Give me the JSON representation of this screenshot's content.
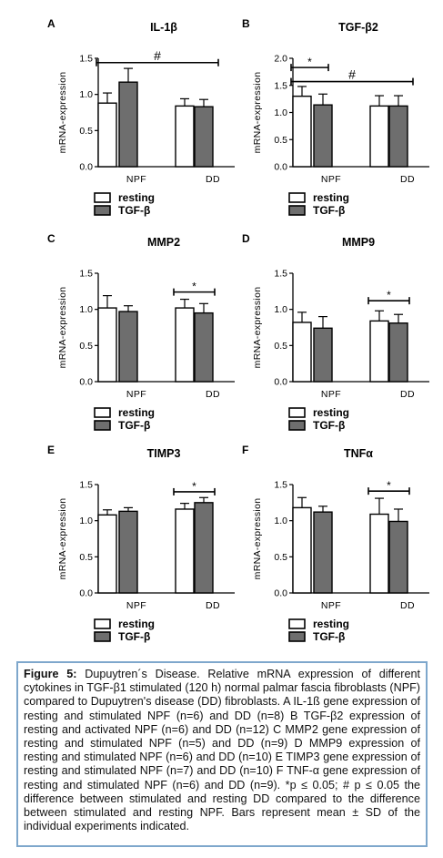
{
  "figure": {
    "caption_lead": "Figure 5:",
    "caption_body": "Dupuytren´s Disease. Relative mRNA expression of different cytokines in TGF-β1 stimulated (120 h) normal palmar fascia fibroblasts (NPF) compared to Dupuytren's disease (DD) fibroblasts. A IL-1ß gene expression of resting and stimulated NPF (n=6) and DD (n=8) B TGF-β2 expression of resting and activated NPF (n=6) and DD (n=12) C MMP2 gene expression of resting and stimulated NPF (n=5) and DD (n=9) D MMP9 expression of resting and stimulated NPF (n=6) and DD (n=10) E TIMP3 gene expression of resting and stimulated NPF (n=7) and DD (n=10) F TNF-α gene expression of resting and stimulated NPF (n=6) and DD (n=9). *p ≤ 0.05; # p ≤ 0.05 the difference between stimulated and resting DD compared to the difference between stimulated and resting NPF. Bars represent mean ± SD of the individual experiments indicated."
  },
  "colors": {
    "resting": "#ffffff",
    "stimulated": "#6e6e6e",
    "stroke": "#000000"
  },
  "chart_data": [
    {
      "panel_letter": "A",
      "type": "bar",
      "title": "IL-1β",
      "ylabel": "mRNA-expression",
      "categories": [
        "NPF",
        "DD"
      ],
      "ylim": [
        0,
        1.5
      ],
      "yticks": [
        "0.0",
        "0.5",
        "1.0",
        "1.5"
      ],
      "series": [
        {
          "name": "resting",
          "values": [
            0.88,
            0.84
          ],
          "errors": [
            0.14,
            0.1
          ]
        },
        {
          "name": "TGF-β",
          "values": [
            1.17,
            0.83
          ],
          "errors": [
            0.19,
            0.1
          ]
        }
      ],
      "annotations": [
        {
          "label": "#",
          "from": "NPF",
          "to": "DD",
          "level": 1.44
        }
      ]
    },
    {
      "panel_letter": "B",
      "type": "bar",
      "title": "TGF-β2",
      "ylabel": "mRNA-expression",
      "categories": [
        "NPF",
        "DD"
      ],
      "ylim": [
        0,
        2.0
      ],
      "yticks": [
        "0.0",
        "0.5",
        "1.0",
        "1.5",
        "2.0"
      ],
      "series": [
        {
          "name": "resting",
          "values": [
            1.3,
            1.12
          ],
          "errors": [
            0.18,
            0.19
          ]
        },
        {
          "name": "TGF-β",
          "values": [
            1.14,
            1.12
          ],
          "errors": [
            0.2,
            0.19
          ]
        }
      ],
      "annotations": [
        {
          "label": "*",
          "from": "NPF-resting",
          "to": "NPF-TGF",
          "level": 1.83
        },
        {
          "label": "#",
          "from": "NPF",
          "to": "DD",
          "level": 1.57
        }
      ]
    },
    {
      "panel_letter": "C",
      "type": "bar",
      "title": "MMP2",
      "ylabel": "mRNA-expression",
      "categories": [
        "NPF",
        "DD"
      ],
      "ylim": [
        0,
        1.5
      ],
      "yticks": [
        "0.0",
        "0.5",
        "1.0",
        "1.5"
      ],
      "series": [
        {
          "name": "resting",
          "values": [
            1.02,
            1.02
          ],
          "errors": [
            0.17,
            0.12
          ]
        },
        {
          "name": "TGF-β",
          "values": [
            0.97,
            0.95
          ],
          "errors": [
            0.08,
            0.13
          ]
        }
      ],
      "annotations": [
        {
          "label": "*",
          "from": "DD-resting",
          "to": "DD-TGF",
          "level": 1.24
        }
      ]
    },
    {
      "panel_letter": "D",
      "type": "bar",
      "title": "MMP9",
      "ylabel": "mRNA-expression",
      "categories": [
        "NPF",
        "DD"
      ],
      "ylim": [
        0,
        1.5
      ],
      "yticks": [
        "0.0",
        "0.5",
        "1.0",
        "1.5"
      ],
      "series": [
        {
          "name": "resting",
          "values": [
            0.82,
            0.84
          ],
          "errors": [
            0.14,
            0.14
          ]
        },
        {
          "name": "TGF-β",
          "values": [
            0.74,
            0.81
          ],
          "errors": [
            0.16,
            0.12
          ]
        }
      ],
      "annotations": [
        {
          "label": "*",
          "from": "DD-resting",
          "to": "DD-TGF",
          "level": 1.12
        }
      ]
    },
    {
      "panel_letter": "E",
      "type": "bar",
      "title": "TIMP3",
      "ylabel": "mRNA-expression",
      "categories": [
        "NPF",
        "DD"
      ],
      "ylim": [
        0,
        1.5
      ],
      "yticks": [
        "0.0",
        "0.5",
        "1.0",
        "1.5"
      ],
      "series": [
        {
          "name": "resting",
          "values": [
            1.08,
            1.16
          ],
          "errors": [
            0.07,
            0.08
          ]
        },
        {
          "name": "TGF-β",
          "values": [
            1.13,
            1.25
          ],
          "errors": [
            0.05,
            0.07
          ]
        }
      ],
      "annotations": [
        {
          "label": "*",
          "from": "DD-resting",
          "to": "DD-TGF",
          "level": 1.4
        }
      ]
    },
    {
      "panel_letter": "F",
      "type": "bar",
      "title": "TNFα",
      "ylabel": "mRNA-expression",
      "categories": [
        "NPF",
        "DD"
      ],
      "ylim": [
        0,
        1.5
      ],
      "yticks": [
        "0.0",
        "0.5",
        "1.0",
        "1.5"
      ],
      "series": [
        {
          "name": "resting",
          "values": [
            1.18,
            1.09
          ],
          "errors": [
            0.14,
            0.22
          ]
        },
        {
          "name": "TGF-β",
          "values": [
            1.12,
            0.99
          ],
          "errors": [
            0.08,
            0.17
          ]
        }
      ],
      "annotations": [
        {
          "label": "*",
          "from": "DD-resting",
          "to": "DD-TGF",
          "level": 1.41
        }
      ]
    }
  ]
}
